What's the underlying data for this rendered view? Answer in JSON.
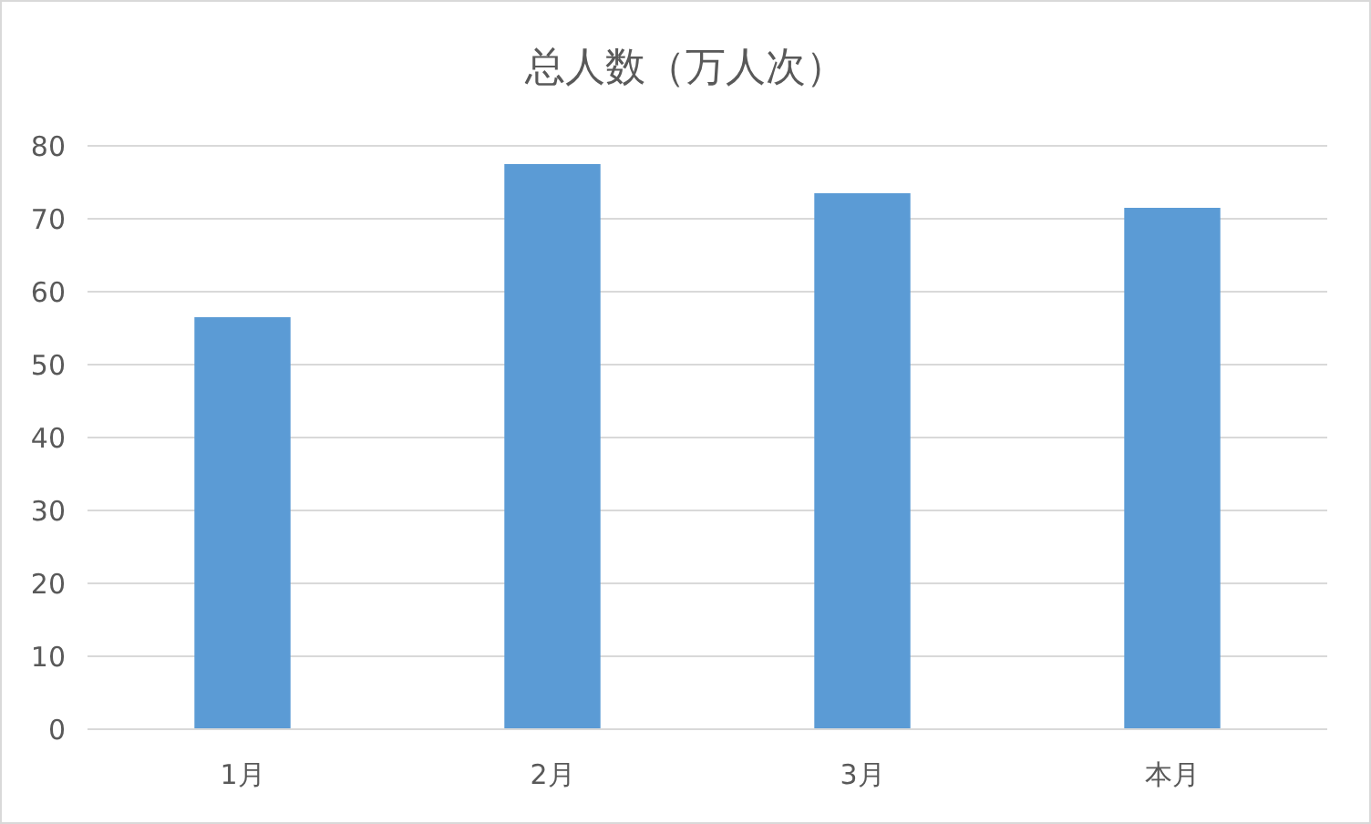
{
  "chart_data": {
    "type": "bar",
    "title": "总人数（万人次）",
    "categories": [
      "1月",
      "2月",
      "3月",
      "本月"
    ],
    "values": [
      56.5,
      77.5,
      73.5,
      71.5
    ],
    "color": "#5b9bd5",
    "ylim": [
      0,
      80
    ],
    "yticks": [
      0,
      10,
      20,
      30,
      40,
      50,
      60,
      70,
      80
    ],
    "grid": "y"
  }
}
